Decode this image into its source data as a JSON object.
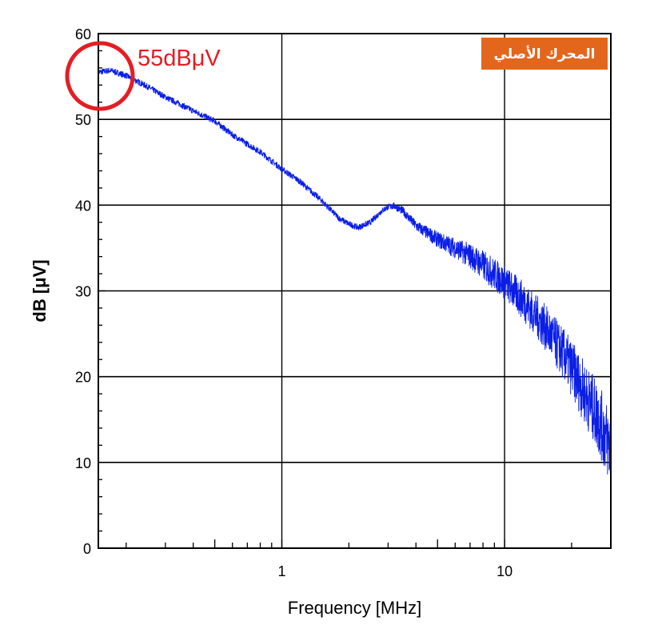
{
  "chart_data": {
    "type": "line",
    "xlabel": "Frequency [MHz]",
    "ylabel": "dB [μV]",
    "x_scale": "log",
    "xlim": [
      0.15,
      30
    ],
    "ylim": [
      0,
      60
    ],
    "grid": true,
    "x_tick_labels": [
      {
        "value": 1,
        "label": "1"
      },
      {
        "value": 10,
        "label": "10"
      }
    ],
    "y_tick_labels": [
      {
        "value": 0,
        "label": "0"
      },
      {
        "value": 10,
        "label": "10"
      },
      {
        "value": 20,
        "label": "20"
      },
      {
        "value": 30,
        "label": "30"
      },
      {
        "value": 40,
        "label": "40"
      },
      {
        "value": 50,
        "label": "50"
      },
      {
        "value": 60,
        "label": "60"
      }
    ],
    "series": [
      {
        "color": "#0a1ee6",
        "x": [
          0.15,
          0.17,
          0.2,
          0.25,
          0.3,
          0.4,
          0.5,
          0.6,
          0.8,
          1.0,
          1.2,
          1.5,
          1.8,
          2.0,
          2.2,
          2.5,
          2.8,
          3.0,
          3.2,
          3.5,
          4.0,
          5.0,
          6.0,
          7.0,
          8.0,
          10.0,
          12.0,
          15.0,
          18.0,
          20.0,
          23.0,
          26.0,
          28.0,
          30.0
        ],
        "y": [
          55.5,
          55.7,
          55.1,
          53.8,
          52.6,
          51.0,
          49.8,
          48.2,
          46.2,
          44.2,
          42.8,
          40.6,
          38.5,
          37.8,
          37.4,
          38.0,
          39.3,
          39.8,
          39.9,
          39.3,
          37.6,
          36.0,
          35.0,
          34.1,
          33.0,
          31.0,
          29.0,
          26.0,
          23.0,
          21.0,
          18.0,
          15.5,
          13.5,
          11.5
        ]
      }
    ],
    "annotations": {
      "callout_text": "55dBμV",
      "callout_color": "#e31e24",
      "badge_text": "المحرك الأصلي",
      "badge_color": "#e2671c"
    }
  }
}
